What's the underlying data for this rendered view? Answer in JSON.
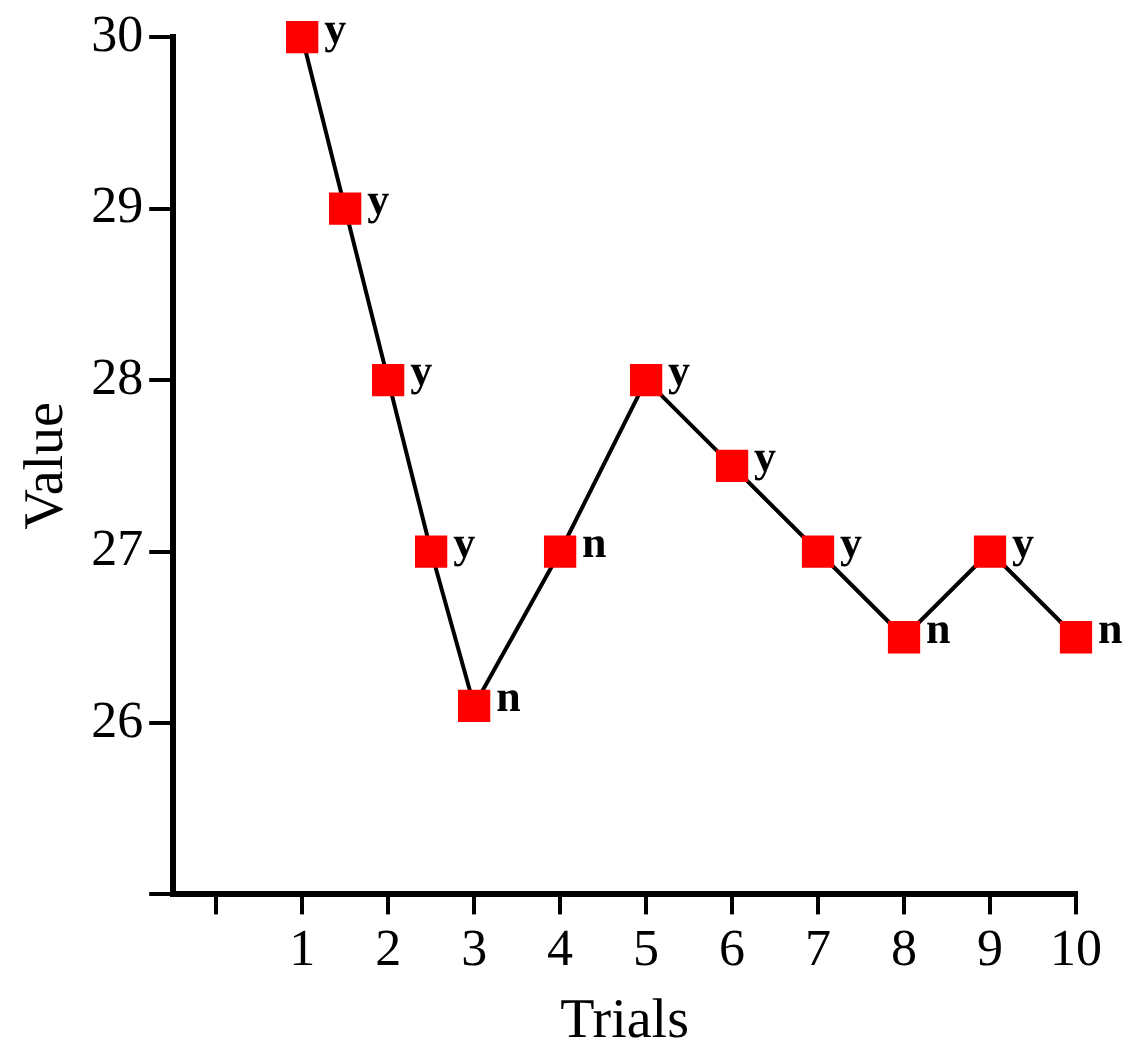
{
  "chart_data": {
    "type": "line",
    "xlabel": "Trials",
    "ylabel": "Value",
    "x": [
      1,
      1.5,
      2,
      2.5,
      3,
      4,
      5,
      6,
      7,
      8,
      9,
      10
    ],
    "series": [
      {
        "color": "#ff0000",
        "values": [
          30,
          29,
          28,
          27,
          26.1,
          27,
          28,
          27.5,
          27,
          26.5,
          27,
          26.5
        ],
        "value_labels": [
          "y",
          "y",
          "y",
          "y",
          "n",
          "n",
          "y",
          "y",
          "y",
          "n",
          "y",
          "n"
        ]
      }
    ],
    "xlim": [
      -0.5,
      10
    ],
    "xticks": [
      {
        "value": 0,
        "label": null
      },
      1,
      2,
      3,
      4,
      5,
      6,
      7,
      8,
      9,
      10
    ],
    "ylim": [
      25,
      30
    ],
    "yticks": [
      {
        "value": 25,
        "label": null
      },
      26,
      27,
      28,
      29,
      30
    ],
    "grid": false,
    "legend": false,
    "marker": "square",
    "line_style": "solid"
  }
}
